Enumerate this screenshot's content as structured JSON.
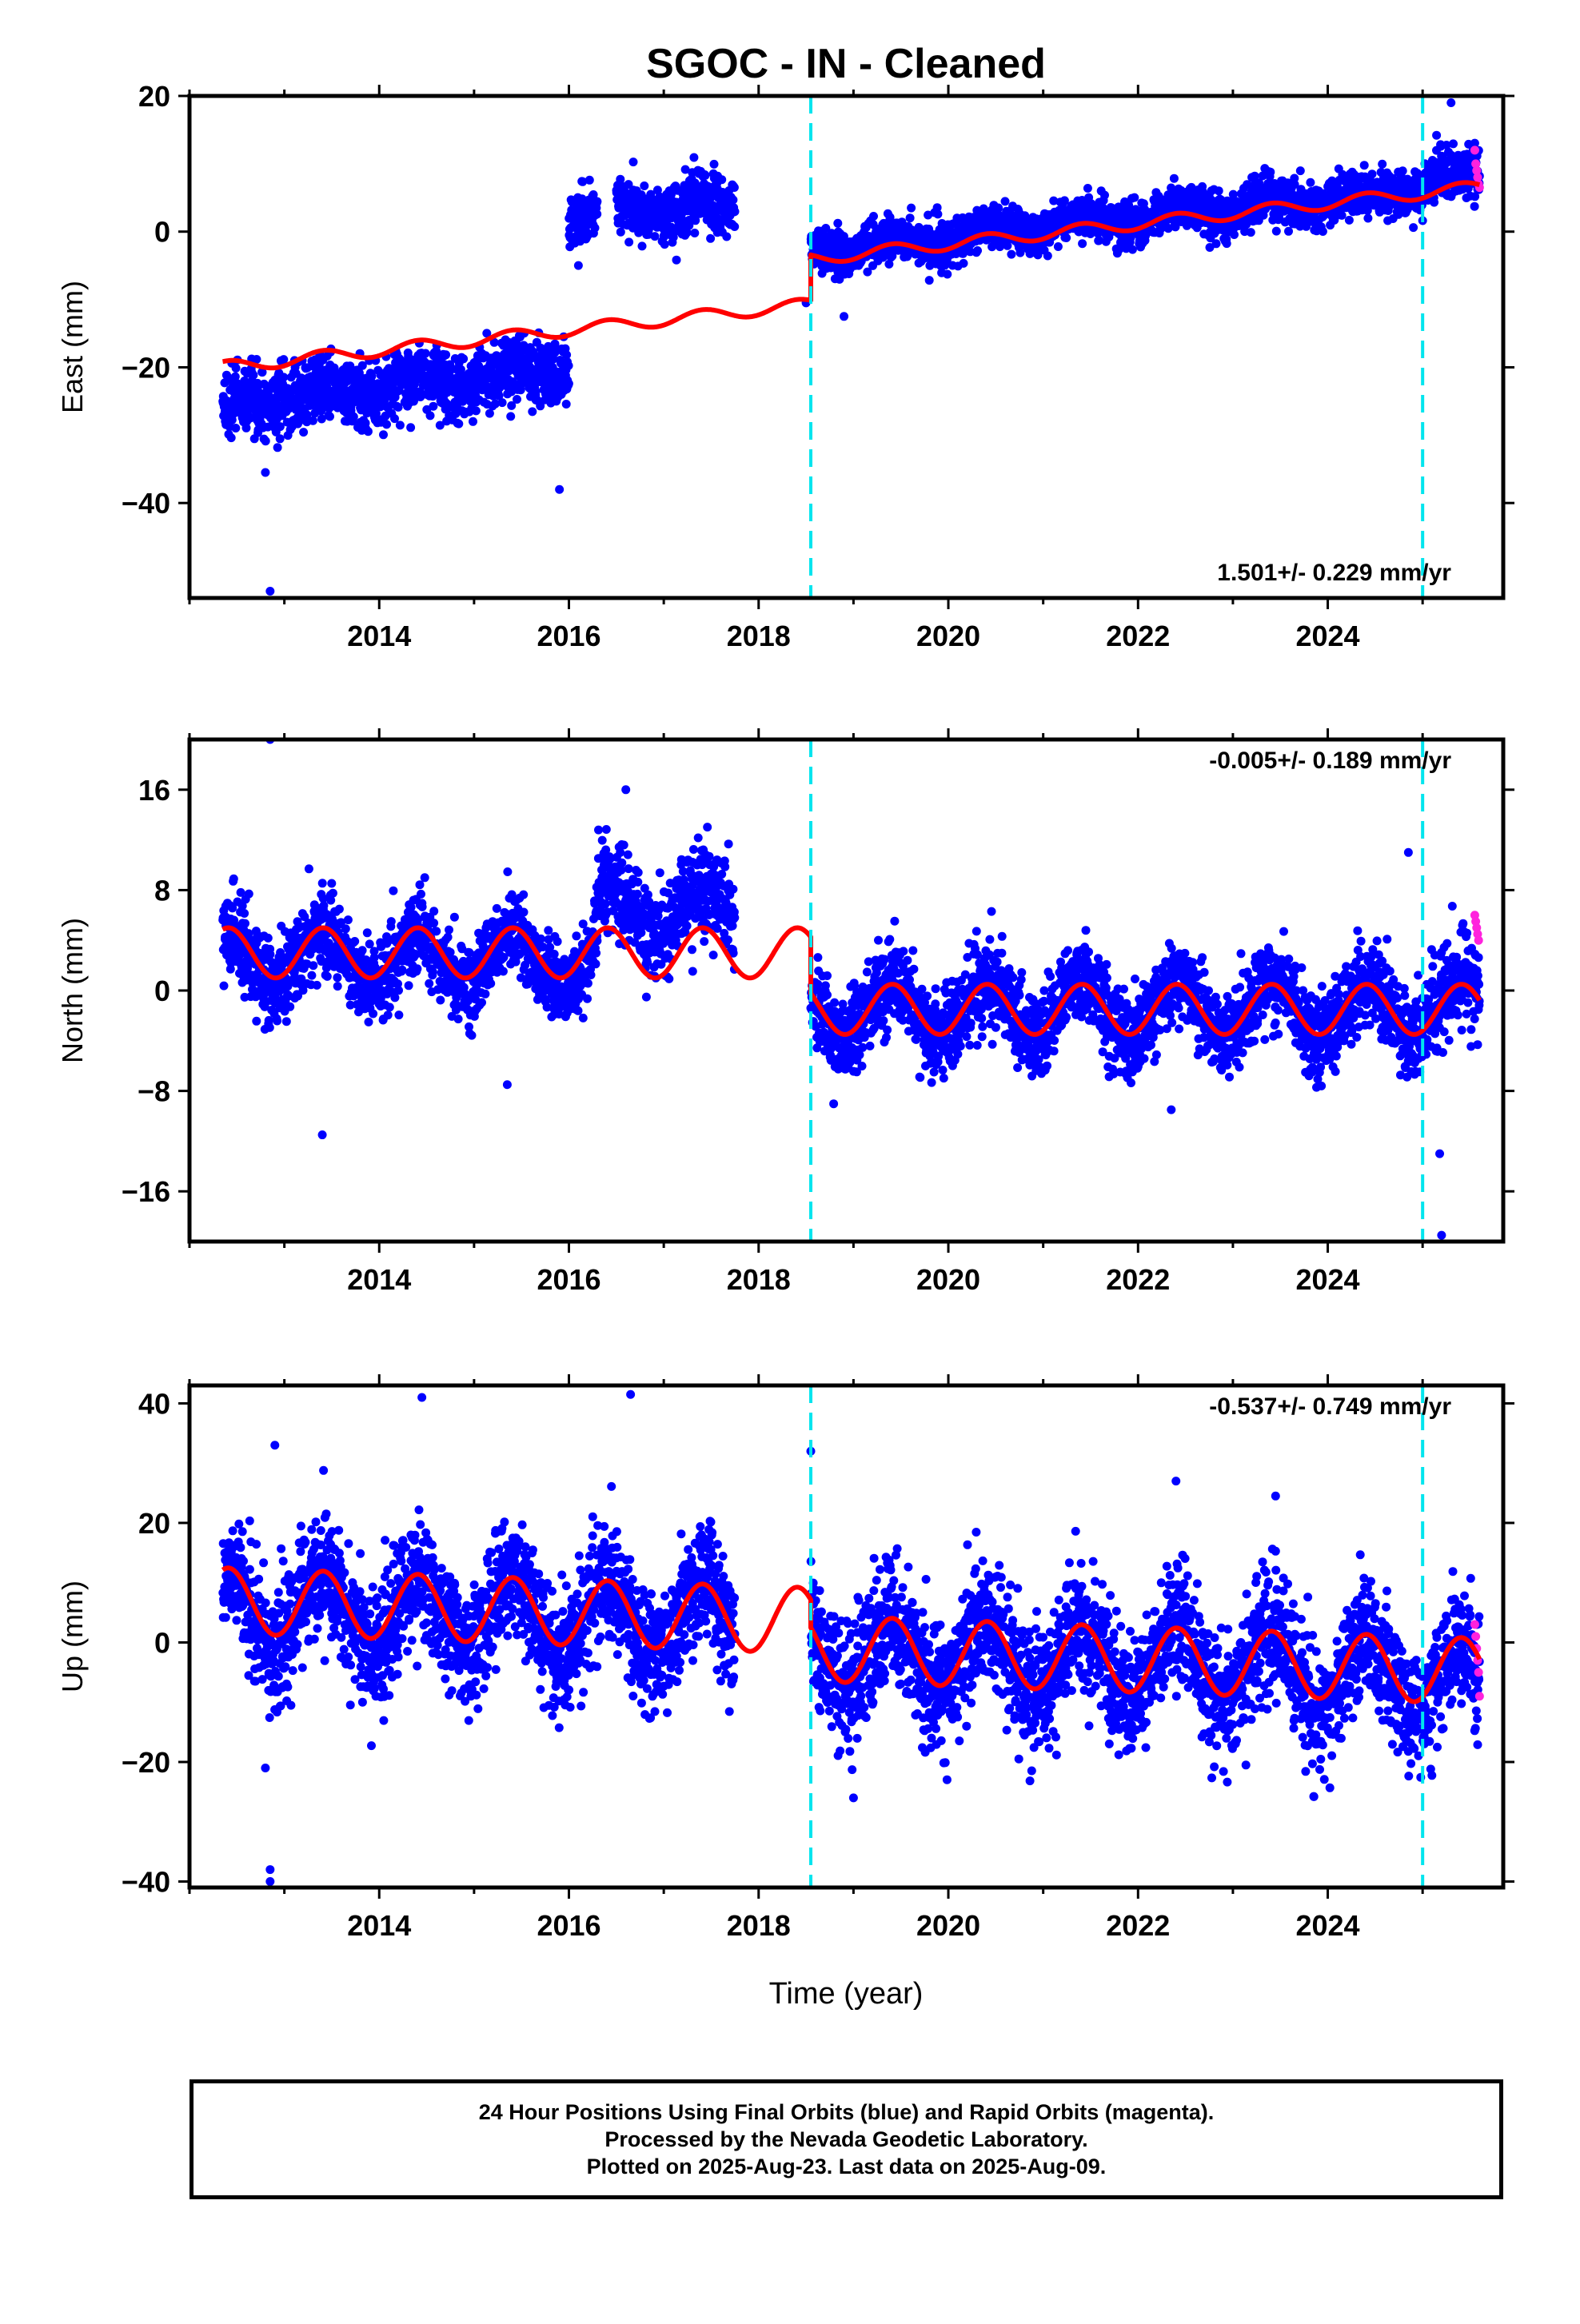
{
  "title": "SGOC  - IN - Cleaned",
  "xlabel": "Time (year)",
  "footer": {
    "line1": "24 Hour Positions Using Final Orbits (blue) and Rapid Orbits (magenta).",
    "line2": "Processed by the Nevada Geodetic Laboratory.",
    "line3": "Plotted on 2025-Aug-23. Last data on 2025-Aug-09."
  },
  "colors": {
    "final": "#0000ff",
    "rapid": "#ff22dd",
    "model": "#ff0000",
    "step": "#00e5ee",
    "frame": "#000000"
  },
  "chart_data": [
    {
      "type": "scatter",
      "component": "East",
      "ylabel": "East (mm)",
      "rate": "1.501+/- 0.229 mm/yr",
      "rate_position": "bottom-right",
      "xlim": [
        2012.0,
        2025.85
      ],
      "ylim": [
        -54,
        20
      ],
      "xticks": [
        2014,
        2016,
        2018,
        2020,
        2022,
        2024
      ],
      "yticks": [
        20,
        0,
        -20,
        -40
      ],
      "steps": [
        2018.55,
        2025.0
      ],
      "data_range": [
        2012.35,
        2025.6
      ],
      "segments": [
        {
          "from": 2012.35,
          "to": 2016.0,
          "level": -25.5,
          "rate": 1.5,
          "scatter": 2.4
        },
        {
          "from": 2016.0,
          "to": 2016.3,
          "level": 2.0,
          "rate": 0.0,
          "scatter": 2.0
        },
        {
          "from": 2016.5,
          "to": 2017.75,
          "level": 3.5,
          "rate": 0.0,
          "scatter": 2.0
        },
        {
          "from": 2018.55,
          "to": 2025.0,
          "level": -3.0,
          "rate": 1.45,
          "scatter": 1.6
        },
        {
          "from": 2025.0,
          "to": 2025.6,
          "level": 8.0,
          "rate": 0.0,
          "scatter": 2.0
        }
      ],
      "model": {
        "pieces": [
          {
            "from": 2012.35,
            "to": 2018.55,
            "start": -20.0,
            "rate": 1.501,
            "amp": 0.9
          },
          {
            "from": 2018.55,
            "to": 2025.6,
            "start": -4.0,
            "rate": 1.501,
            "amp": 0.9
          }
        ]
      },
      "outliers": [
        [
          2012.85,
          -53.0
        ],
        [
          2012.8,
          -35.5
        ],
        [
          2015.9,
          -38.0
        ],
        [
          2025.3,
          19.0
        ],
        [
          2018.5,
          -10.5
        ],
        [
          2018.9,
          -12.5
        ],
        [
          2016.1,
          -5.0
        ]
      ],
      "rapid": [
        [
          2025.55,
          12.0
        ],
        [
          2025.56,
          10.0
        ],
        [
          2025.57,
          9.0
        ],
        [
          2025.58,
          8.0
        ],
        [
          2025.59,
          7.0
        ],
        [
          2025.6,
          6.5
        ]
      ]
    },
    {
      "type": "scatter",
      "component": "North",
      "ylabel": "North (mm)",
      "rate": "-0.005+/- 0.189 mm/yr",
      "rate_position": "top-right",
      "xlim": [
        2012.0,
        2025.85
      ],
      "ylim": [
        -20,
        20
      ],
      "xticks": [
        2014,
        2016,
        2018,
        2020,
        2022,
        2024
      ],
      "yticks": [
        16,
        8,
        0,
        -8,
        -16
      ],
      "steps": [
        2018.55,
        2025.0
      ],
      "data_range": [
        2012.35,
        2025.6
      ],
      "segments": [
        {
          "from": 2012.35,
          "to": 2016.3,
          "level": 2.5,
          "rate": 0.0,
          "scatter": 1.6
        },
        {
          "from": 2016.3,
          "to": 2017.75,
          "level": 6.5,
          "rate": 0.0,
          "scatter": 1.8
        },
        {
          "from": 2018.55,
          "to": 2025.0,
          "level": -1.5,
          "rate": 0.0,
          "scatter": 1.7
        },
        {
          "from": 2025.0,
          "to": 2025.6,
          "level": -1.0,
          "rate": 0.0,
          "scatter": 2.0
        }
      ],
      "model": {
        "pieces": [
          {
            "from": 2012.35,
            "to": 2018.55,
            "start": 3.0,
            "rate": 0.0,
            "amp": 2.0
          },
          {
            "from": 2018.55,
            "to": 2025.6,
            "start": -1.5,
            "rate": 0.0,
            "amp": 2.0
          }
        ]
      },
      "outliers": [
        [
          2012.85,
          20.0
        ],
        [
          2013.4,
          -11.5
        ],
        [
          2015.35,
          -7.5
        ],
        [
          2024.85,
          11.0
        ],
        [
          2025.2,
          -19.5
        ],
        [
          2025.18,
          -13.0
        ],
        [
          2016.6,
          16.0
        ],
        [
          2022.35,
          -9.5
        ]
      ],
      "rapid": [
        [
          2025.55,
          6.0
        ],
        [
          2025.56,
          5.5
        ],
        [
          2025.57,
          5.0
        ],
        [
          2025.58,
          4.5
        ],
        [
          2025.59,
          4.0
        ]
      ]
    },
    {
      "type": "scatter",
      "component": "Up",
      "ylabel": "Up (mm)",
      "rate": "-0.537+/- 0.749 mm/yr",
      "rate_position": "top-right",
      "xlim": [
        2012.0,
        2025.85
      ],
      "ylim": [
        -41,
        43
      ],
      "xticks": [
        2014,
        2016,
        2018,
        2020,
        2022,
        2024
      ],
      "yticks": [
        40,
        20,
        0,
        -20,
        -40
      ],
      "steps": [
        2018.55,
        2025.0
      ],
      "data_range": [
        2012.35,
        2025.6
      ],
      "segments": [
        {
          "from": 2012.35,
          "to": 2017.75,
          "level": 6.0,
          "rate": -0.537,
          "scatter": 5.0
        },
        {
          "from": 2018.55,
          "to": 2025.0,
          "level": -1.5,
          "rate": -0.537,
          "scatter": 5.0
        },
        {
          "from": 2025.0,
          "to": 2025.6,
          "level": -6.0,
          "rate": 0.0,
          "scatter": 5.0
        }
      ],
      "model": {
        "pieces": [
          {
            "from": 2012.35,
            "to": 2018.55,
            "start": 7.0,
            "rate": -0.537,
            "amp": 5.5
          },
          {
            "from": 2018.55,
            "to": 2025.6,
            "start": -1.0,
            "rate": -0.537,
            "amp": 5.5
          }
        ]
      },
      "outliers": [
        [
          2012.85,
          -38.0
        ],
        [
          2012.85,
          -40.0
        ],
        [
          2012.8,
          -21.0
        ],
        [
          2014.45,
          41.0
        ],
        [
          2016.65,
          41.5
        ],
        [
          2012.9,
          33.0
        ],
        [
          2018.55,
          32.0
        ],
        [
          2022.4,
          27.0
        ],
        [
          2023.45,
          24.5
        ],
        [
          2019.0,
          -26.0
        ]
      ],
      "rapid": [
        [
          2025.55,
          3.0
        ],
        [
          2025.56,
          1.0
        ],
        [
          2025.57,
          -1.0
        ],
        [
          2025.58,
          -3.0
        ],
        [
          2025.59,
          -5.0
        ],
        [
          2025.6,
          -9.0
        ]
      ]
    }
  ]
}
